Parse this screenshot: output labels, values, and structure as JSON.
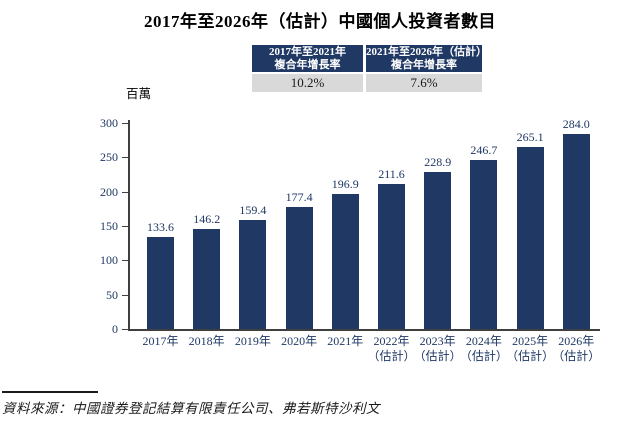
{
  "title": "2017年至2026年（估計）中國個人投資者數目",
  "unit_label": "百萬",
  "growth_table": {
    "columns": [
      {
        "header_line1": "2017年至2021年",
        "header_line2": "複合年增長率",
        "value": "10.2%"
      },
      {
        "header_line1": "2021年至2026年（估計）",
        "header_line2": "複合年增長率",
        "value": "7.6%"
      }
    ]
  },
  "chart_data": {
    "type": "bar",
    "categories": [
      {
        "line1": "2017年",
        "line2": ""
      },
      {
        "line1": "2018年",
        "line2": ""
      },
      {
        "line1": "2019年",
        "line2": ""
      },
      {
        "line1": "2020年",
        "line2": ""
      },
      {
        "line1": "2021年",
        "line2": ""
      },
      {
        "line1": "2022年",
        "line2": "（估計）"
      },
      {
        "line1": "2023年",
        "line2": "（估計）"
      },
      {
        "line1": "2024年",
        "line2": "（估計）"
      },
      {
        "line1": "2025年",
        "line2": "（估計）"
      },
      {
        "line1": "2026年",
        "line2": "（估計）"
      }
    ],
    "values": [
      133.6,
      146.2,
      159.4,
      177.4,
      196.9,
      211.6,
      228.9,
      246.7,
      265.1,
      284.0
    ],
    "value_labels": [
      "133.6",
      "146.2",
      "159.4",
      "177.4",
      "196.9",
      "211.6",
      "228.9",
      "246.7",
      "265.1",
      "284.0"
    ],
    "title": "2017年至2026年（估計）中國個人投資者數目",
    "xlabel": "",
    "ylabel": "百萬",
    "ylim": [
      0,
      300
    ],
    "yticks": [
      0,
      50,
      100,
      150,
      200,
      250,
      300
    ],
    "grid": false,
    "legend": "none",
    "bar_color": "#1F3864",
    "text_color": "#1F3864"
  },
  "source": "資料來源：中國證券登記結算有限責任公司、弗若斯特沙利文"
}
